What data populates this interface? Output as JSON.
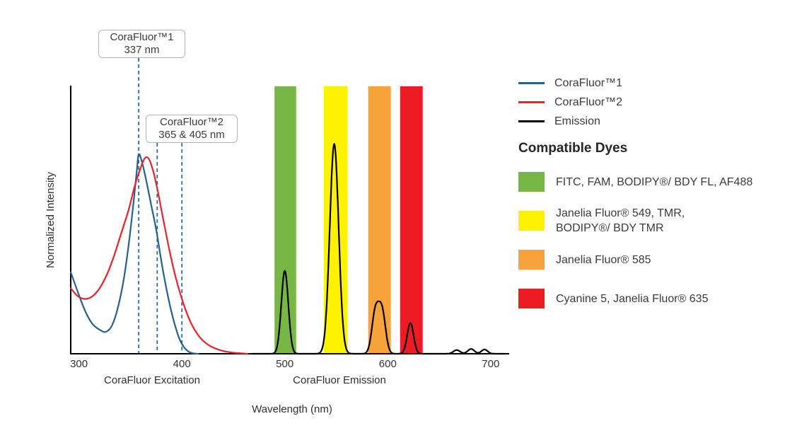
{
  "chart_data": {
    "type": "line",
    "xlabel": "Wavelength (nm)",
    "ylabel": "Normalized Intensity",
    "xlim": [
      292,
      718
    ],
    "ylim": [
      0,
      1
    ],
    "grid": false,
    "x_ticks": [
      "300",
      "400",
      "500",
      "600",
      "700"
    ],
    "axis_section_labels": [
      {
        "text": "CoraFluor Excitation"
      },
      {
        "text": "CoraFluor Emission"
      }
    ],
    "callouts": [
      {
        "title": "CoraFluor™1",
        "value": "337 nm",
        "lines_nm": [
          358
        ]
      },
      {
        "title": "CoraFluor™2",
        "value": "365 & 405 nm",
        "lines_nm": [
          376,
          400
        ]
      }
    ],
    "dashed_line_color": "#2e6da4",
    "axis_color": "#000000",
    "series": [
      {
        "name": "CoraFluor™1",
        "kind": "excitation",
        "color": "#27608f",
        "points": [
          [
            292,
            0.305
          ],
          [
            299,
            0.23
          ],
          [
            306,
            0.16
          ],
          [
            313,
            0.112
          ],
          [
            320,
            0.09
          ],
          [
            326,
            0.082
          ],
          [
            332,
            0.105
          ],
          [
            338,
            0.175
          ],
          [
            344,
            0.29
          ],
          [
            349,
            0.43
          ],
          [
            353,
            0.565
          ],
          [
            356,
            0.675
          ],
          [
            358,
            0.745
          ],
          [
            361,
            0.72
          ],
          [
            365,
            0.655
          ],
          [
            370,
            0.56
          ],
          [
            375,
            0.465
          ],
          [
            381,
            0.325
          ],
          [
            387,
            0.205
          ],
          [
            392,
            0.125
          ],
          [
            397,
            0.062
          ],
          [
            402,
            0.025
          ],
          [
            407,
            0.007
          ],
          [
            412,
            0.001
          ],
          [
            416,
            0
          ]
        ]
      },
      {
        "name": "CoraFluor™2",
        "kind": "excitation",
        "color": "#e8232d",
        "points": [
          [
            292,
            0.245
          ],
          [
            299,
            0.215
          ],
          [
            306,
            0.205
          ],
          [
            313,
            0.215
          ],
          [
            320,
            0.245
          ],
          [
            327,
            0.295
          ],
          [
            334,
            0.365
          ],
          [
            341,
            0.45
          ],
          [
            348,
            0.535
          ],
          [
            354,
            0.625
          ],
          [
            359,
            0.685
          ],
          [
            363,
            0.725
          ],
          [
            366,
            0.735
          ],
          [
            369,
            0.72
          ],
          [
            373,
            0.67
          ],
          [
            377,
            0.6
          ],
          [
            382,
            0.5
          ],
          [
            388,
            0.385
          ],
          [
            394,
            0.285
          ],
          [
            400,
            0.205
          ],
          [
            406,
            0.14
          ],
          [
            412,
            0.092
          ],
          [
            419,
            0.055
          ],
          [
            427,
            0.03
          ],
          [
            436,
            0.015
          ],
          [
            446,
            0.006
          ],
          [
            456,
            0.002
          ],
          [
            464,
            0
          ]
        ]
      },
      {
        "name": "Emission",
        "kind": "emission",
        "color": "#000000",
        "range": [
          468,
          714
        ],
        "peaks": [
          {
            "center": 500,
            "height": 0.31,
            "sigma": 3.4
          },
          {
            "center": 548,
            "height": 0.785,
            "sigma": 4.3
          },
          {
            "center": 588,
            "height": 0.155,
            "sigma": 3.4
          },
          {
            "center": 594.5,
            "height": 0.155,
            "sigma": 3.4
          },
          {
            "center": 622,
            "height": 0.115,
            "sigma": 3.1
          },
          {
            "center": 667,
            "height": 0.014,
            "sigma": 3.2
          },
          {
            "center": 681,
            "height": 0.018,
            "sigma": 3.2
          },
          {
            "center": 694,
            "height": 0.016,
            "sigma": 3.0
          }
        ]
      }
    ],
    "bands": [
      {
        "name": "green",
        "color": "#76b843",
        "x0": 490,
        "x1": 511
      },
      {
        "name": "yellow",
        "color": "#fff200",
        "x0": 538,
        "x1": 561
      },
      {
        "name": "orange",
        "color": "#f7a23a",
        "x0": 581,
        "x1": 603
      },
      {
        "name": "red",
        "color": "#ed1c24",
        "x0": 612,
        "x1": 634
      }
    ]
  },
  "legend": {
    "entries": [
      {
        "label": "CoraFluor™1",
        "color": "#27608f"
      },
      {
        "label": "CoraFluor™2",
        "color": "#e8232d"
      },
      {
        "label": "Emission",
        "color": "#000000"
      }
    ],
    "dyes_heading": "Compatible Dyes",
    "dyes": [
      {
        "color": "#76b843",
        "label": "FITC, FAM, BODIPY®/ BDY FL, AF488"
      },
      {
        "color": "#fff200",
        "label": "Janelia Fluor® 549, TMR,\nBODIPY®/ BDY TMR"
      },
      {
        "color": "#f7a23a",
        "label": "Janelia Fluor® 585"
      },
      {
        "color": "#ed1c24",
        "label": "Cyanine 5, Janelia Fluor® 635"
      }
    ]
  }
}
